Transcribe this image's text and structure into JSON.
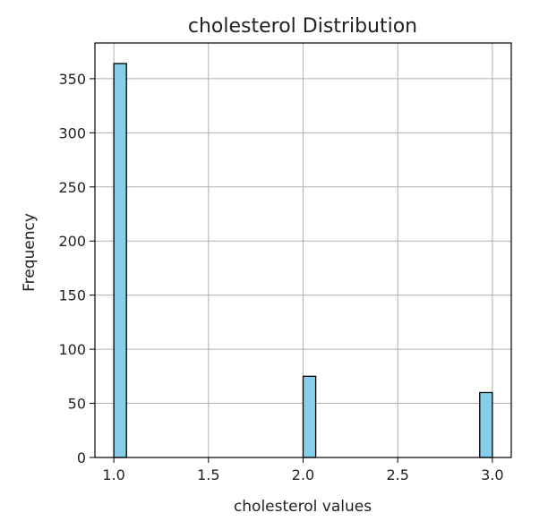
{
  "chart_data": {
    "type": "bar",
    "title": "cholesterol Distribution",
    "xlabel": "cholesterol values",
    "ylabel": "Frequency",
    "xlim": [
      0.9,
      3.1
    ],
    "ylim": [
      0,
      383
    ],
    "x_ticks": [
      "1.0",
      "1.5",
      "2.0",
      "2.5",
      "3.0"
    ],
    "y_ticks": [
      "0",
      "50",
      "100",
      "150",
      "200",
      "250",
      "300",
      "350"
    ],
    "bins": [
      {
        "start": 1.0,
        "end": 1.0667,
        "value": 364
      },
      {
        "start": 2.0,
        "end": 2.0667,
        "value": 75
      },
      {
        "start": 2.9333,
        "end": 3.0,
        "value": 60
      }
    ],
    "grid": true,
    "legend": "none",
    "colors": {
      "bar_fill": "#87ceeb",
      "bar_edge": "#000000",
      "grid": "#b0b0b0"
    }
  }
}
